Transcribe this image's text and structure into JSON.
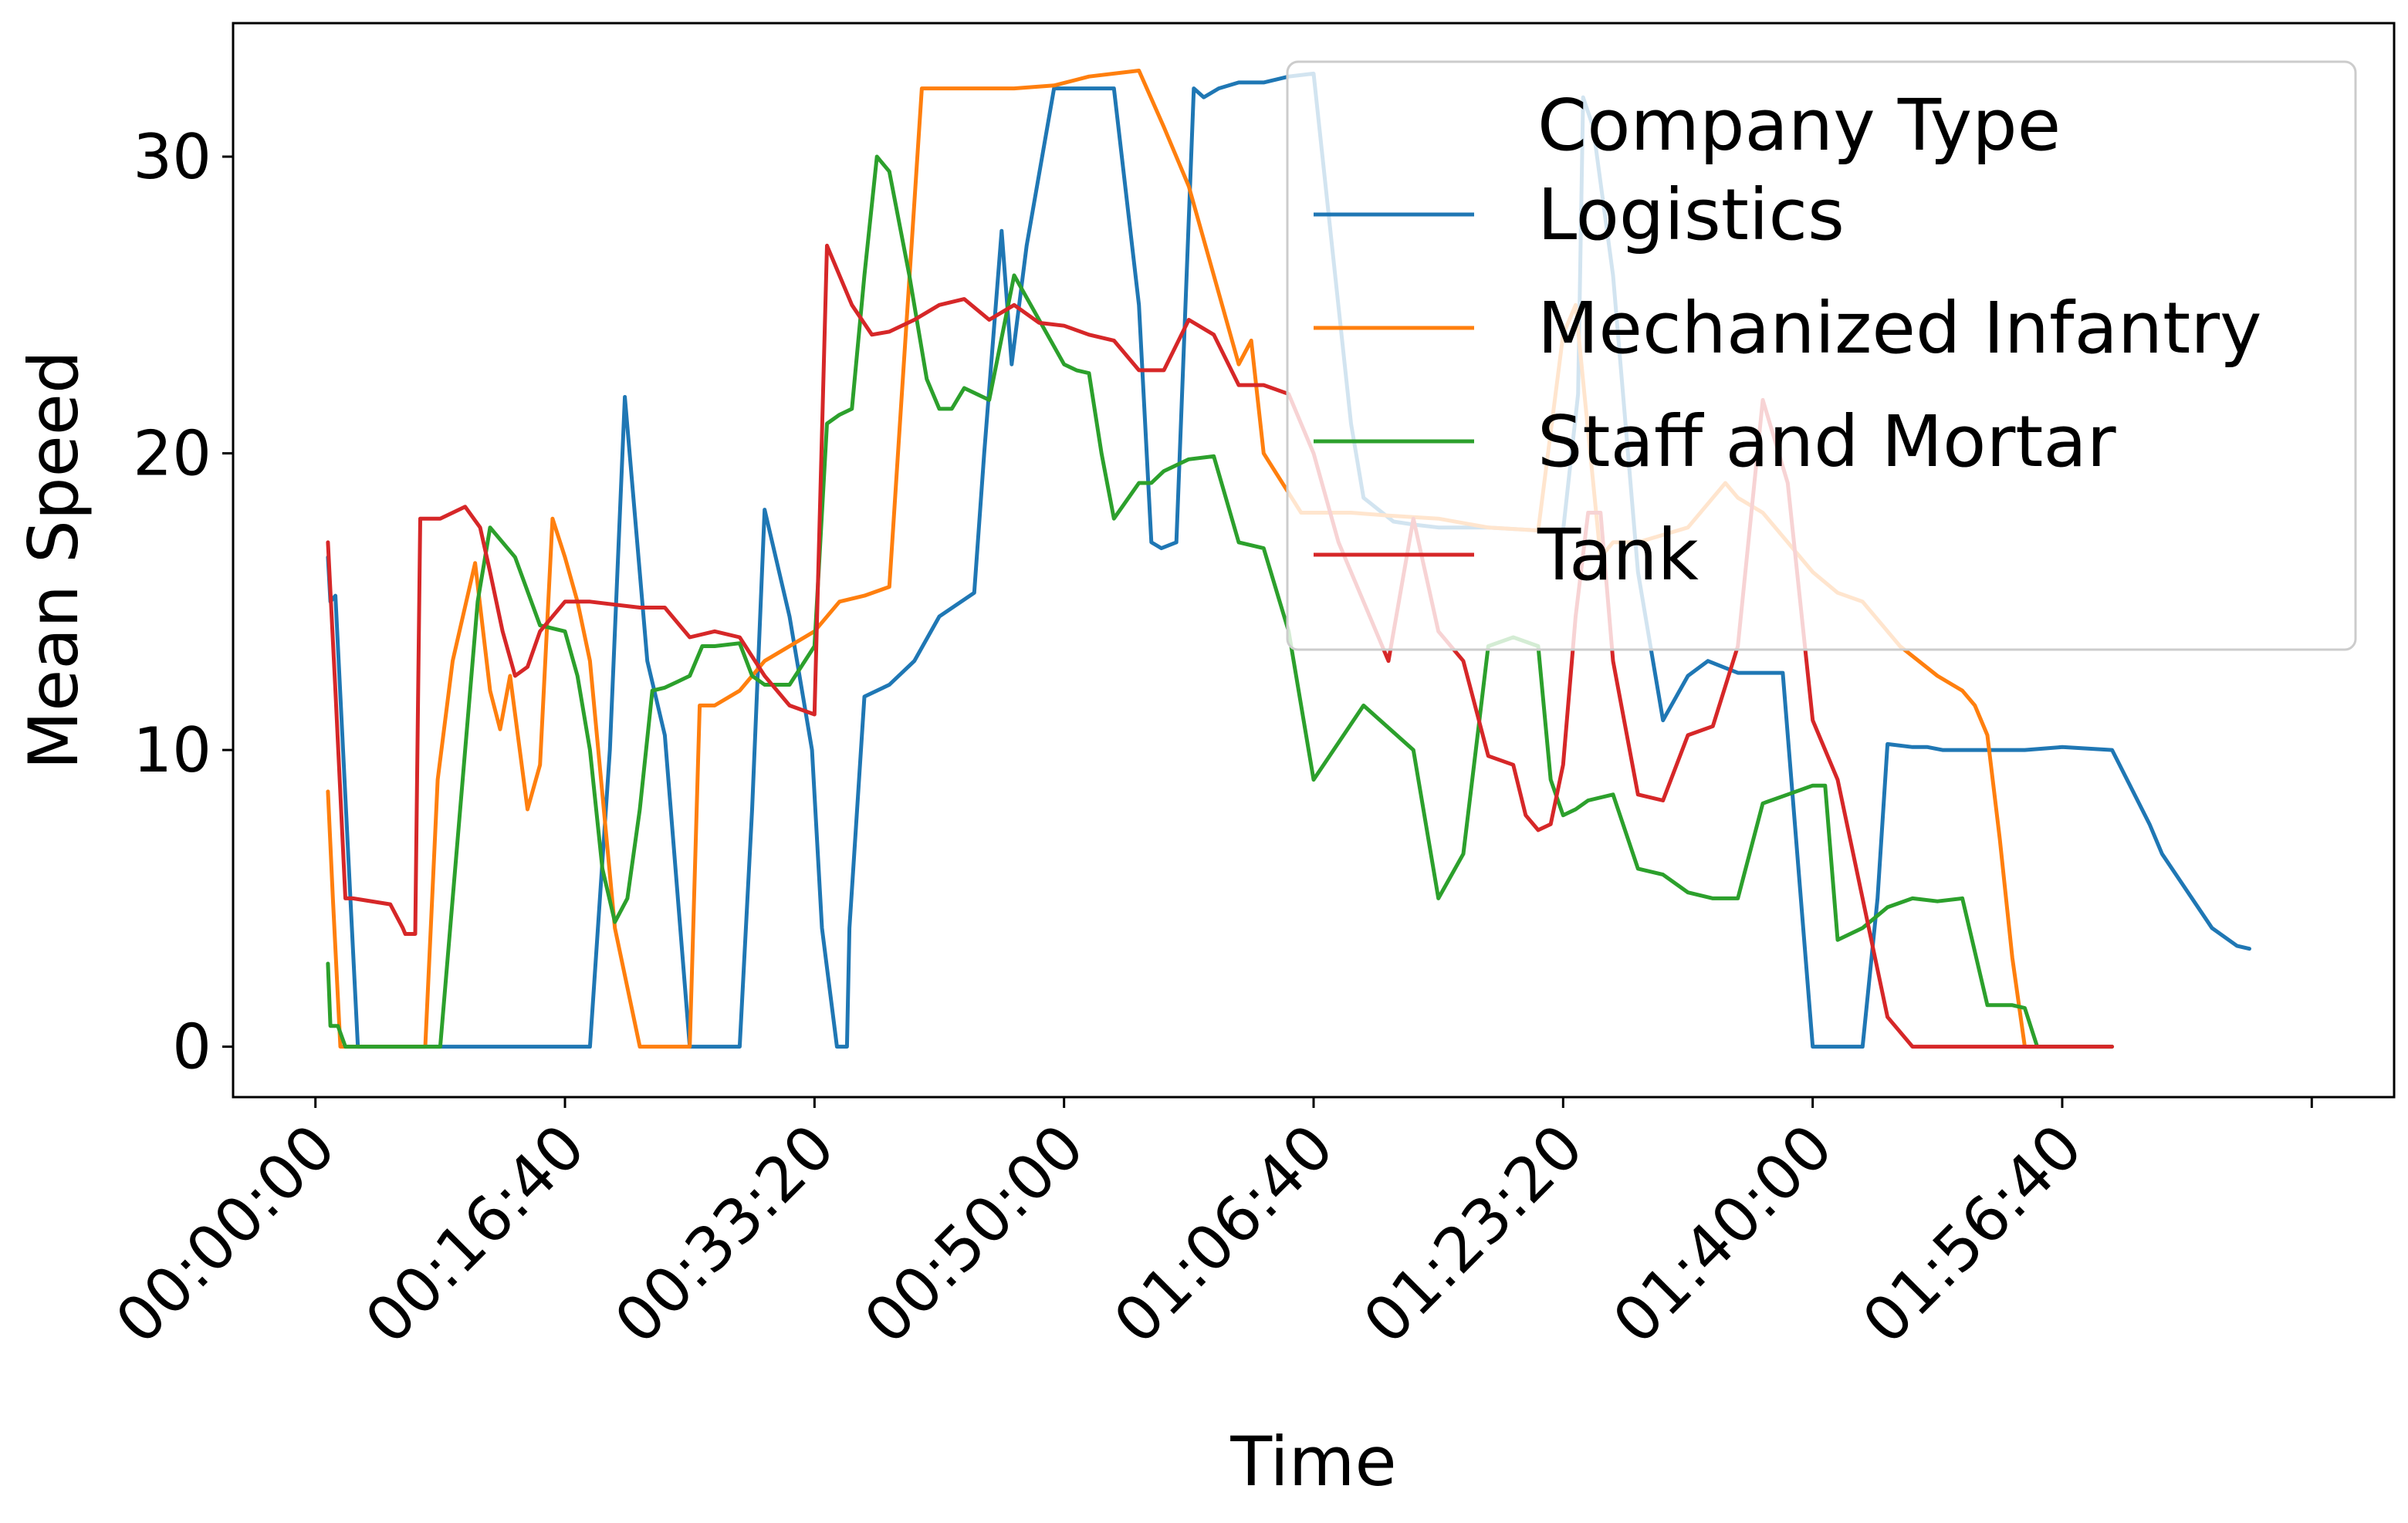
{
  "chart_data": {
    "type": "line",
    "xlabel": "Time",
    "ylabel": "Mean Speed",
    "x_tick_labels": [
      "00:00:00",
      "00:16:40",
      "00:33:20",
      "00:50:00",
      "01:06:40",
      "01:23:20",
      "01:40:00",
      "01:56:40"
    ],
    "x_tick_values_seconds": [
      0,
      1000,
      2000,
      3000,
      4000,
      5000,
      6000,
      7000
    ],
    "y_ticks": [
      0,
      10,
      20,
      30
    ],
    "xlim_seconds": [
      -330,
      8330
    ],
    "ylim": [
      -1.7,
      34.5
    ],
    "grid": false,
    "legend": {
      "title": "Company Type",
      "placement": "top-right"
    },
    "x_unit_note": "x values are elapsed time in seconds from 00:00:00",
    "series": [
      {
        "name": "Logistics",
        "color": "#1f77b4",
        "x": [
          50,
          60,
          80,
          140,
          170,
          1100,
          1180,
          1240,
          1330,
          1400,
          1500,
          1600,
          1700,
          1750,
          1800,
          1900,
          1990,
          2030,
          2090,
          2130,
          2140,
          2200,
          2300,
          2400,
          2500,
          2640,
          2680,
          2750,
          2790,
          2850,
          2960,
          3010,
          3200,
          3300,
          3350,
          3390,
          3450,
          3520,
          3560,
          3620,
          3700,
          3800,
          3900,
          4000,
          4150,
          4200,
          4320,
          4400,
          4500,
          4700,
          4900,
          5000,
          5060,
          5080,
          5120,
          5200,
          5300,
          5400,
          5500,
          5580,
          5640,
          5700,
          5800,
          5880,
          6000,
          6200,
          6260,
          6300,
          6400,
          6460,
          6520,
          6600,
          6700,
          6850,
          7000,
          7200,
          7350,
          7400,
          7600,
          7700,
          7750
        ],
        "y": [
          16.5,
          15.0,
          15.2,
          5.0,
          0.0,
          0.0,
          10.0,
          21.9,
          13.0,
          10.5,
          0.0,
          0.0,
          0.0,
          8.0,
          18.1,
          14.5,
          10.0,
          4.0,
          0.0,
          0.0,
          4.0,
          11.8,
          12.2,
          13.0,
          14.5,
          15.3,
          20.0,
          27.5,
          23.0,
          27.0,
          32.3,
          32.3,
          32.3,
          25.0,
          17.0,
          16.8,
          17.0,
          32.3,
          32.0,
          32.3,
          32.5,
          32.5,
          32.7,
          32.8,
          21.0,
          18.5,
          17.7,
          17.6,
          17.5,
          17.5,
          17.4,
          17.4,
          22.0,
          32.0,
          31.0,
          26.0,
          16.0,
          11.0,
          12.5,
          13.0,
          12.8,
          12.6,
          12.6,
          12.6,
          0.0,
          0.0,
          5.0,
          10.2,
          10.1,
          10.1,
          10.0,
          10.0,
          10.0,
          10.0,
          10.1,
          10.0,
          7.5,
          6.5,
          4.0,
          3.4,
          3.3
        ]
      },
      {
        "name": "Mechanized Infantry",
        "color": "#ff7f0e",
        "x": [
          50,
          70,
          100,
          440,
          490,
          550,
          640,
          700,
          740,
          780,
          850,
          900,
          950,
          1000,
          1050,
          1100,
          1200,
          1300,
          1360,
          1400,
          1440,
          1500,
          1540,
          1600,
          1700,
          1800,
          1900,
          2000,
          2100,
          2200,
          2300,
          2350,
          2430,
          2500,
          2800,
          2960,
          3100,
          3300,
          3400,
          3500,
          3600,
          3700,
          3750,
          3800,
          3950,
          4000,
          4050,
          4150,
          4300,
          4500,
          4700,
          4900,
          5000,
          5050,
          5150,
          5200,
          5300,
          5500,
          5650,
          5700,
          5800,
          6000,
          6100,
          6200,
          6350,
          6500,
          6600,
          6650,
          6700,
          6750,
          6800,
          6850,
          6900
        ],
        "y": [
          8.6,
          5.0,
          0.0,
          0.0,
          9.0,
          13.0,
          16.3,
          12.0,
          10.7,
          12.5,
          8.0,
          9.5,
          17.8,
          16.5,
          15.0,
          13.0,
          4.0,
          0.0,
          0.0,
          0.0,
          0.0,
          0.0,
          11.5,
          11.5,
          12.0,
          13.0,
          13.5,
          14.0,
          15.0,
          15.2,
          15.5,
          22.0,
          32.3,
          32.3,
          32.3,
          32.4,
          32.7,
          32.9,
          31.0,
          29.0,
          26.0,
          23.0,
          23.8,
          20.0,
          18.0,
          18.0,
          18.0,
          18.0,
          17.9,
          17.8,
          17.5,
          17.4,
          24.0,
          25.0,
          16.5,
          17.0,
          17.0,
          17.5,
          19.0,
          18.5,
          18.0,
          16.0,
          15.3,
          15.0,
          13.5,
          12.5,
          12.0,
          11.5,
          10.5,
          7.0,
          3.0,
          0.0,
          0.0
        ]
      },
      {
        "name": "Staff and Mortar",
        "color": "#2ca02c",
        "x": [
          50,
          60,
          90,
          120,
          500,
          600,
          650,
          700,
          800,
          900,
          1000,
          1050,
          1100,
          1150,
          1200,
          1250,
          1300,
          1350,
          1400,
          1450,
          1500,
          1550,
          1600,
          1700,
          1750,
          1800,
          1900,
          2000,
          2050,
          2100,
          2150,
          2200,
          2250,
          2300,
          2380,
          2450,
          2500,
          2550,
          2600,
          2700,
          2800,
          3000,
          3050,
          3100,
          3150,
          3200,
          3300,
          3350,
          3400,
          3500,
          3600,
          3700,
          3800,
          3900,
          4000,
          4200,
          4400,
          4500,
          4600,
          4650,
          4700,
          4800,
          4900,
          4950,
          5000,
          5050,
          5100,
          5200,
          5300,
          5400,
          5500,
          5600,
          5700,
          5800,
          5900,
          6000,
          6050,
          6100,
          6200,
          6300,
          6400,
          6500,
          6600,
          6700,
          6800,
          6850,
          6900,
          7000,
          7100,
          7200
        ],
        "y": [
          2.8,
          0.7,
          0.7,
          0.0,
          0.0,
          10.0,
          15.0,
          17.5,
          16.5,
          14.2,
          14.0,
          12.5,
          10.0,
          6.0,
          4.2,
          5.0,
          8.0,
          12.0,
          12.1,
          12.3,
          12.5,
          13.5,
          13.5,
          13.6,
          12.5,
          12.2,
          12.2,
          13.5,
          21.0,
          21.3,
          21.5,
          26.0,
          30.0,
          29.5,
          26.0,
          22.5,
          21.5,
          21.5,
          22.2,
          21.8,
          26.0,
          23.0,
          22.8,
          22.7,
          20.0,
          17.8,
          19.0,
          19.0,
          19.4,
          19.8,
          19.9,
          17.0,
          16.8,
          14.0,
          9.0,
          11.5,
          10.0,
          5.0,
          6.5,
          10.0,
          13.5,
          13.8,
          13.5,
          9.0,
          7.8,
          8.0,
          8.3,
          8.5,
          6.0,
          5.8,
          5.2,
          5.0,
          5.0,
          8.2,
          8.5,
          8.8,
          8.8,
          3.6,
          4.0,
          4.7,
          5.0,
          4.9,
          5.0,
          1.4,
          1.4,
          1.3,
          0.0,
          0.0,
          0.0,
          0.0
        ]
      },
      {
        "name": "Tank",
        "color": "#d62728",
        "x": [
          50,
          80,
          120,
          150,
          300,
          350,
          360,
          400,
          420,
          500,
          600,
          660,
          700,
          750,
          800,
          850,
          900,
          1000,
          1100,
          1200,
          1300,
          1400,
          1500,
          1600,
          1700,
          1800,
          1900,
          2000,
          2050,
          2150,
          2230,
          2300,
          2400,
          2500,
          2600,
          2700,
          2800,
          2900,
          3000,
          3100,
          3200,
          3300,
          3400,
          3500,
          3600,
          3700,
          3800,
          3900,
          4000,
          4100,
          4200,
          4300,
          4400,
          4500,
          4600,
          4700,
          4800,
          4850,
          4900,
          4950,
          5000,
          5050,
          5100,
          5150,
          5200,
          5300,
          5400,
          5500,
          5600,
          5700,
          5800,
          5900,
          6000,
          6100,
          6200,
          6300,
          6400,
          6450,
          6500,
          6550,
          6600,
          6700,
          6800,
          7000,
          7200
        ],
        "y": [
          17.0,
          12.0,
          5.0,
          5.0,
          4.8,
          4.0,
          3.8,
          3.8,
          17.8,
          17.8,
          18.2,
          17.5,
          16.0,
          14.0,
          12.5,
          12.8,
          14.0,
          15.0,
          15.0,
          14.9,
          14.8,
          14.8,
          13.8,
          14.0,
          13.8,
          12.5,
          11.5,
          11.2,
          27.0,
          25.0,
          24.0,
          24.1,
          24.5,
          25.0,
          25.2,
          24.5,
          25.0,
          24.4,
          24.3,
          24.0,
          23.8,
          22.8,
          22.8,
          24.5,
          24.0,
          22.3,
          22.3,
          22.0,
          20.0,
          17.0,
          15.0,
          13.0,
          17.8,
          14.0,
          13.0,
          9.8,
          9.5,
          7.8,
          7.3,
          7.5,
          9.5,
          14.5,
          18.0,
          18.0,
          13.0,
          8.5,
          8.3,
          10.5,
          10.8,
          13.5,
          21.8,
          19.0,
          11.0,
          9.0,
          5.0,
          1.0,
          0.0,
          0.0,
          0.0,
          0.0,
          0.0,
          0.0,
          0.0,
          0.0,
          0.0
        ]
      }
    ]
  }
}
